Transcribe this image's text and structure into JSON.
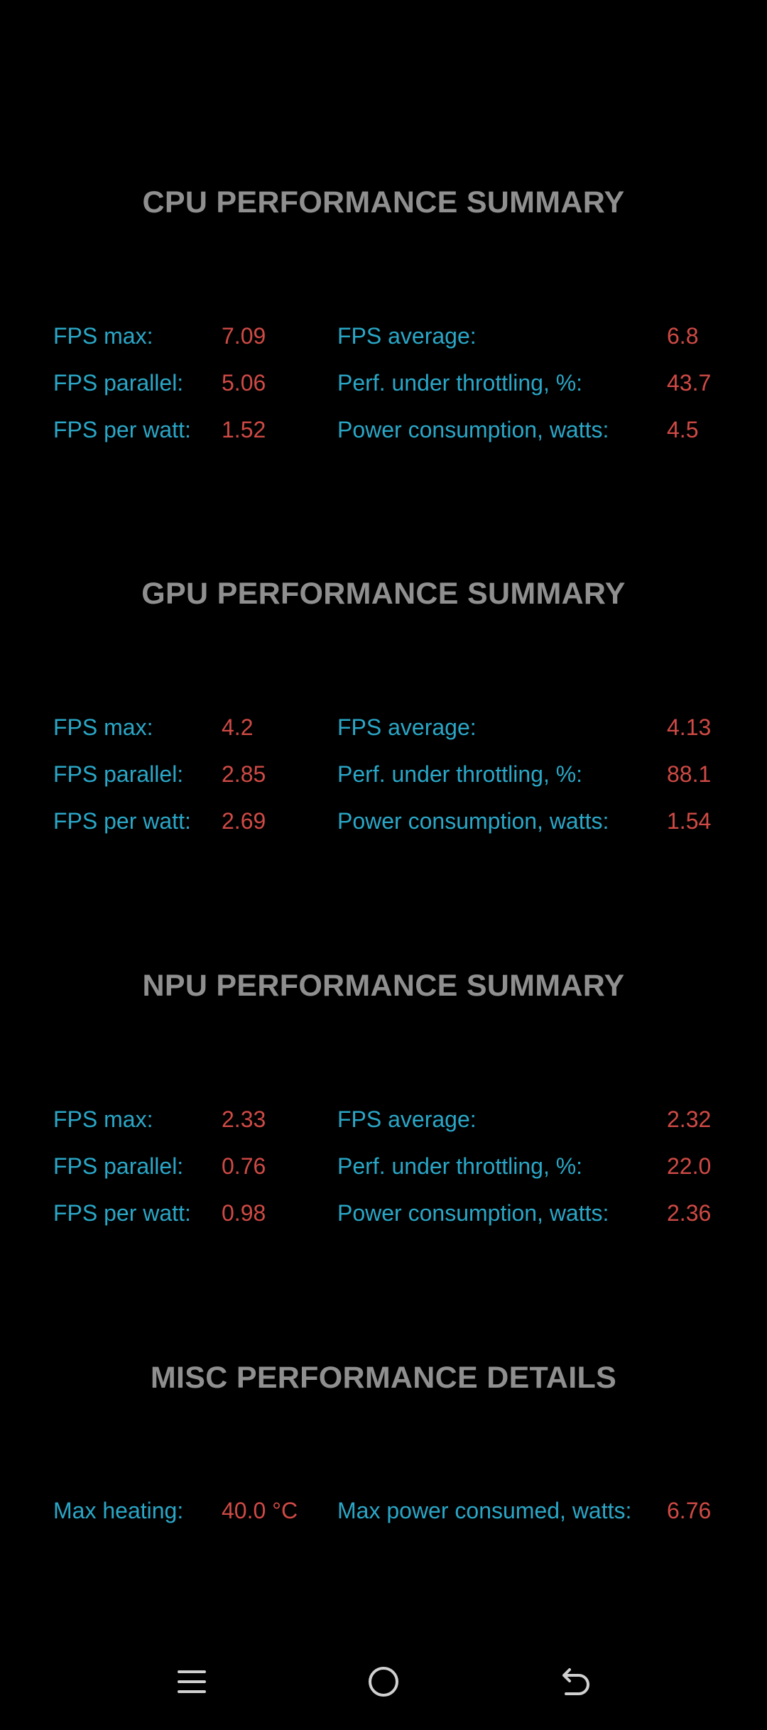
{
  "sections": [
    {
      "title": "CPU PERFORMANCE SUMMARY",
      "left": [
        {
          "label": "FPS max:",
          "value": "7.09"
        },
        {
          "label": "FPS parallel:",
          "value": "5.06"
        },
        {
          "label": "FPS per watt:",
          "value": "1.52"
        }
      ],
      "right": [
        {
          "label": "FPS average:",
          "value": "6.8"
        },
        {
          "label": "Perf. under throttling, %:",
          "value": "43.7"
        },
        {
          "label": "Power consumption, watts:",
          "value": "4.5"
        }
      ]
    },
    {
      "title": "GPU PERFORMANCE SUMMARY",
      "left": [
        {
          "label": "FPS max:",
          "value": "4.2"
        },
        {
          "label": "FPS parallel:",
          "value": "2.85"
        },
        {
          "label": "FPS per watt:",
          "value": "2.69"
        }
      ],
      "right": [
        {
          "label": "FPS average:",
          "value": "4.13"
        },
        {
          "label": "Perf. under throttling, %:",
          "value": "88.1"
        },
        {
          "label": "Power consumption, watts:",
          "value": "1.54"
        }
      ]
    },
    {
      "title": "NPU PERFORMANCE SUMMARY",
      "left": [
        {
          "label": "FPS max:",
          "value": "2.33"
        },
        {
          "label": "FPS parallel:",
          "value": "0.76"
        },
        {
          "label": "FPS per watt:",
          "value": "0.98"
        }
      ],
      "right": [
        {
          "label": "FPS average:",
          "value": "2.32"
        },
        {
          "label": "Perf. under throttling, %:",
          "value": "22.0"
        },
        {
          "label": "Power consumption, watts:",
          "value": "2.36"
        }
      ]
    },
    {
      "title": "MISC PERFORMANCE DETAILS",
      "left": [
        {
          "label": "Max heating:",
          "value": "40.0 °C"
        }
      ],
      "right": [
        {
          "label": "Max power consumed, watts:",
          "value": "6.76"
        }
      ]
    }
  ],
  "navbar": {
    "icons": [
      "menu-icon",
      "home-icon",
      "back-icon"
    ]
  },
  "colors": {
    "background": "#000000",
    "title": "#8f8f8f",
    "label": "#2aa7c7",
    "value": "#cf4a45",
    "nav_icon": "#d0d0d0"
  }
}
